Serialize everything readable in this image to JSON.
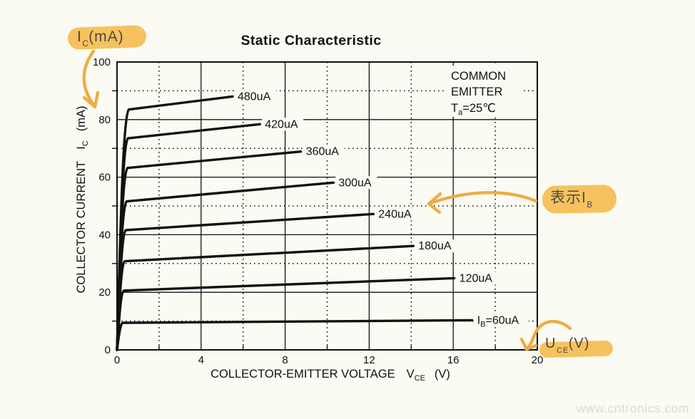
{
  "page": {
    "background": "#fbfaf3",
    "watermark": "www.cntronics.com",
    "watermark_color": "#cfe6c3"
  },
  "chart_data": {
    "type": "line",
    "title": "Static Characteristic",
    "xlabel": "COLLECTOR-EMITTER VOLTAGE",
    "xlabel_symbol": "V",
    "xlabel_symbol_sub": "CE",
    "xlabel_unit": "(V)",
    "ylabel": "COLLECTOR CURRENT",
    "ylabel_symbol": "I",
    "ylabel_symbol_sub": "C",
    "ylabel_unit": "(mA)",
    "xlim": [
      0,
      20
    ],
    "ylim": [
      0,
      100
    ],
    "x_ticks": [
      0,
      4,
      8,
      12,
      16,
      20
    ],
    "x_minor_ticks": [
      2,
      6,
      10,
      14,
      18
    ],
    "y_ticks": [
      0,
      20,
      40,
      60,
      80,
      100
    ],
    "y_minor_ticks": [
      10,
      30,
      50,
      70,
      90
    ],
    "grid": {
      "major_style": "solid",
      "minor_style": "dotted"
    },
    "legend_position": "labels-at-curve-ends",
    "corner_note": {
      "line1": "COMMON",
      "line2": "EMITTER",
      "temp_prefix": "T",
      "temp_sub": "a",
      "temp_rest": "=25℃"
    },
    "curve_color": "#111111",
    "series": [
      {
        "name": "IB=480uA",
        "label": "480uA",
        "knee_v": 0.56,
        "knee_i": 83.5,
        "end_v": 5.5,
        "end_i": 88.0
      },
      {
        "name": "IB=420uA",
        "label": "420uA",
        "knee_v": 0.52,
        "knee_i": 73.5,
        "end_v": 6.8,
        "end_i": 78.4
      },
      {
        "name": "IB=360uA",
        "label": "360uA",
        "knee_v": 0.5,
        "knee_i": 63.2,
        "end_v": 8.75,
        "end_i": 68.9
      },
      {
        "name": "IB=300uA",
        "label": "300uA",
        "knee_v": 0.46,
        "knee_i": 51.6,
        "end_v": 10.3,
        "end_i": 58.1
      },
      {
        "name": "IB=240uA",
        "label": "240uA",
        "knee_v": 0.42,
        "knee_i": 41.6,
        "end_v": 12.2,
        "end_i": 47.2
      },
      {
        "name": "IB=180uA",
        "label": "180uA",
        "knee_v": 0.37,
        "knee_i": 30.8,
        "end_v": 14.1,
        "end_i": 36.1
      },
      {
        "name": "IB=120uA",
        "label": "120uA",
        "knee_v": 0.33,
        "knee_i": 20.6,
        "end_v": 16.05,
        "end_i": 24.9
      },
      {
        "name": "IB=60uA",
        "label": "=60uA",
        "label_pre": "I",
        "label_sub": "B",
        "knee_v": 0.28,
        "knee_i": 9.4,
        "end_v": 16.9,
        "end_i": 10.3
      }
    ]
  },
  "annotations": {
    "highlight_color": "#f4bd53",
    "ink_color": "#54483a",
    "arrow_color": "#edad42",
    "ic_label": {
      "pre": "I",
      "sub": "C",
      "post": "(mA)"
    },
    "ib_note": {
      "pre": "表示I",
      "sub": "B",
      "post": ""
    },
    "uce_label": {
      "pre": "U",
      "sub": "CE",
      "post": "(V)"
    }
  }
}
